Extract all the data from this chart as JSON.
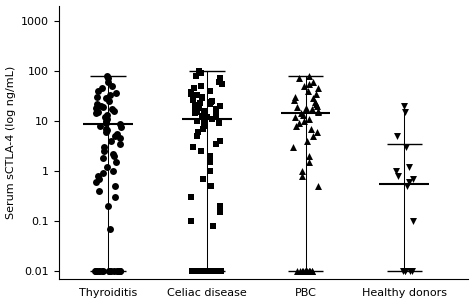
{
  "groups": [
    "Thyroiditis",
    "Celiac disease",
    "PBC",
    "Healthy donors"
  ],
  "markers": [
    "o",
    "s",
    "^",
    "v"
  ],
  "marker_size": 5,
  "marker_color": "black",
  "ylim": [
    0.007,
    2000
  ],
  "yticks": [
    0.01,
    0.1,
    1,
    10,
    100,
    1000
  ],
  "ytick_labels": [
    "0.01",
    "0.1",
    "1",
    "10",
    "100",
    "1000"
  ],
  "ylabel": "Serum sCTLA-4 (log ng/mL)",
  "medians": [
    8.5,
    11.0,
    14.0,
    0.55
  ],
  "whisker_low": [
    0.01,
    0.01,
    0.01,
    0.01
  ],
  "whisker_high": [
    80.0,
    100.0,
    80.0,
    20.0
  ],
  "upper_bar": [
    80.0,
    100.0,
    80.0,
    3.5
  ],
  "lower_bar": [
    0.01,
    0.01,
    0.01,
    0.01
  ],
  "thyroiditis_data": [
    0.01,
    0.01,
    0.01,
    0.01,
    0.01,
    0.01,
    0.01,
    0.01,
    0.01,
    0.01,
    0.01,
    0.01,
    0.01,
    0.01,
    0.01,
    0.01,
    0.07,
    0.2,
    0.3,
    0.4,
    0.5,
    0.6,
    0.7,
    0.8,
    0.9,
    1.0,
    1.2,
    1.5,
    1.8,
    2.0,
    2.2,
    2.5,
    3.0,
    3.5,
    4.0,
    4.5,
    5.0,
    5.5,
    6.0,
    6.5,
    7.0,
    7.5,
    8.0,
    8.5,
    9.0,
    10.0,
    11.0,
    12.0,
    13.0,
    14.0,
    15.0,
    16.0,
    17.0,
    18.0,
    19.0,
    20.0,
    22.0,
    25.0,
    28.0,
    30.0,
    33.0,
    36.0,
    40.0,
    45.0,
    50.0,
    60.0,
    70.0,
    80.0
  ],
  "celiac_data": [
    0.01,
    0.01,
    0.01,
    0.01,
    0.01,
    0.01,
    0.01,
    0.01,
    0.01,
    0.01,
    0.01,
    0.01,
    0.01,
    0.01,
    0.01,
    0.01,
    0.01,
    0.01,
    0.01,
    0.01,
    0.01,
    0.01,
    0.01,
    0.01,
    0.01,
    0.01,
    0.08,
    0.1,
    0.15,
    0.2,
    0.3,
    0.5,
    0.7,
    1.0,
    1.5,
    2.0,
    2.5,
    3.0,
    3.5,
    4.0,
    5.0,
    6.0,
    7.0,
    8.0,
    9.0,
    10.0,
    10.5,
    11.0,
    12.0,
    12.5,
    13.0,
    14.0,
    15.0,
    16.0,
    17.0,
    18.0,
    19.0,
    20.0,
    21.0,
    22.0,
    23.0,
    24.0,
    25.0,
    26.0,
    28.0,
    30.0,
    32.0,
    35.0,
    38.0,
    40.0,
    45.0,
    50.0,
    55.0,
    60.0,
    70.0,
    80.0,
    90.0,
    100.0
  ],
  "pbc_data": [
    0.01,
    0.01,
    0.01,
    0.01,
    0.01,
    0.01,
    0.01,
    0.01,
    0.01,
    0.01,
    0.01,
    0.5,
    0.8,
    1.0,
    1.5,
    2.0,
    3.0,
    4.0,
    5.0,
    6.0,
    7.0,
    8.0,
    9.0,
    10.0,
    11.0,
    12.0,
    13.0,
    14.0,
    15.0,
    16.0,
    17.0,
    18.0,
    19.0,
    20.0,
    22.0,
    24.0,
    26.0,
    28.0,
    30.0,
    35.0,
    40.0,
    45.0,
    50.0,
    55.0,
    60.0,
    70.0,
    80.0
  ],
  "healthy_data": [
    0.01,
    0.01,
    0.01,
    0.01,
    0.01,
    0.1,
    0.5,
    0.6,
    0.7,
    0.8,
    1.0,
    1.2,
    3.0,
    5.0,
    15.0,
    20.0
  ],
  "figsize": [
    4.74,
    3.04
  ],
  "dpi": 100,
  "background_color": "white",
  "bar_color": "black",
  "bar_linewidth": 1.0,
  "bar_width": 0.18,
  "jitter_strength": [
    0.13,
    0.16,
    0.13,
    0.09
  ]
}
